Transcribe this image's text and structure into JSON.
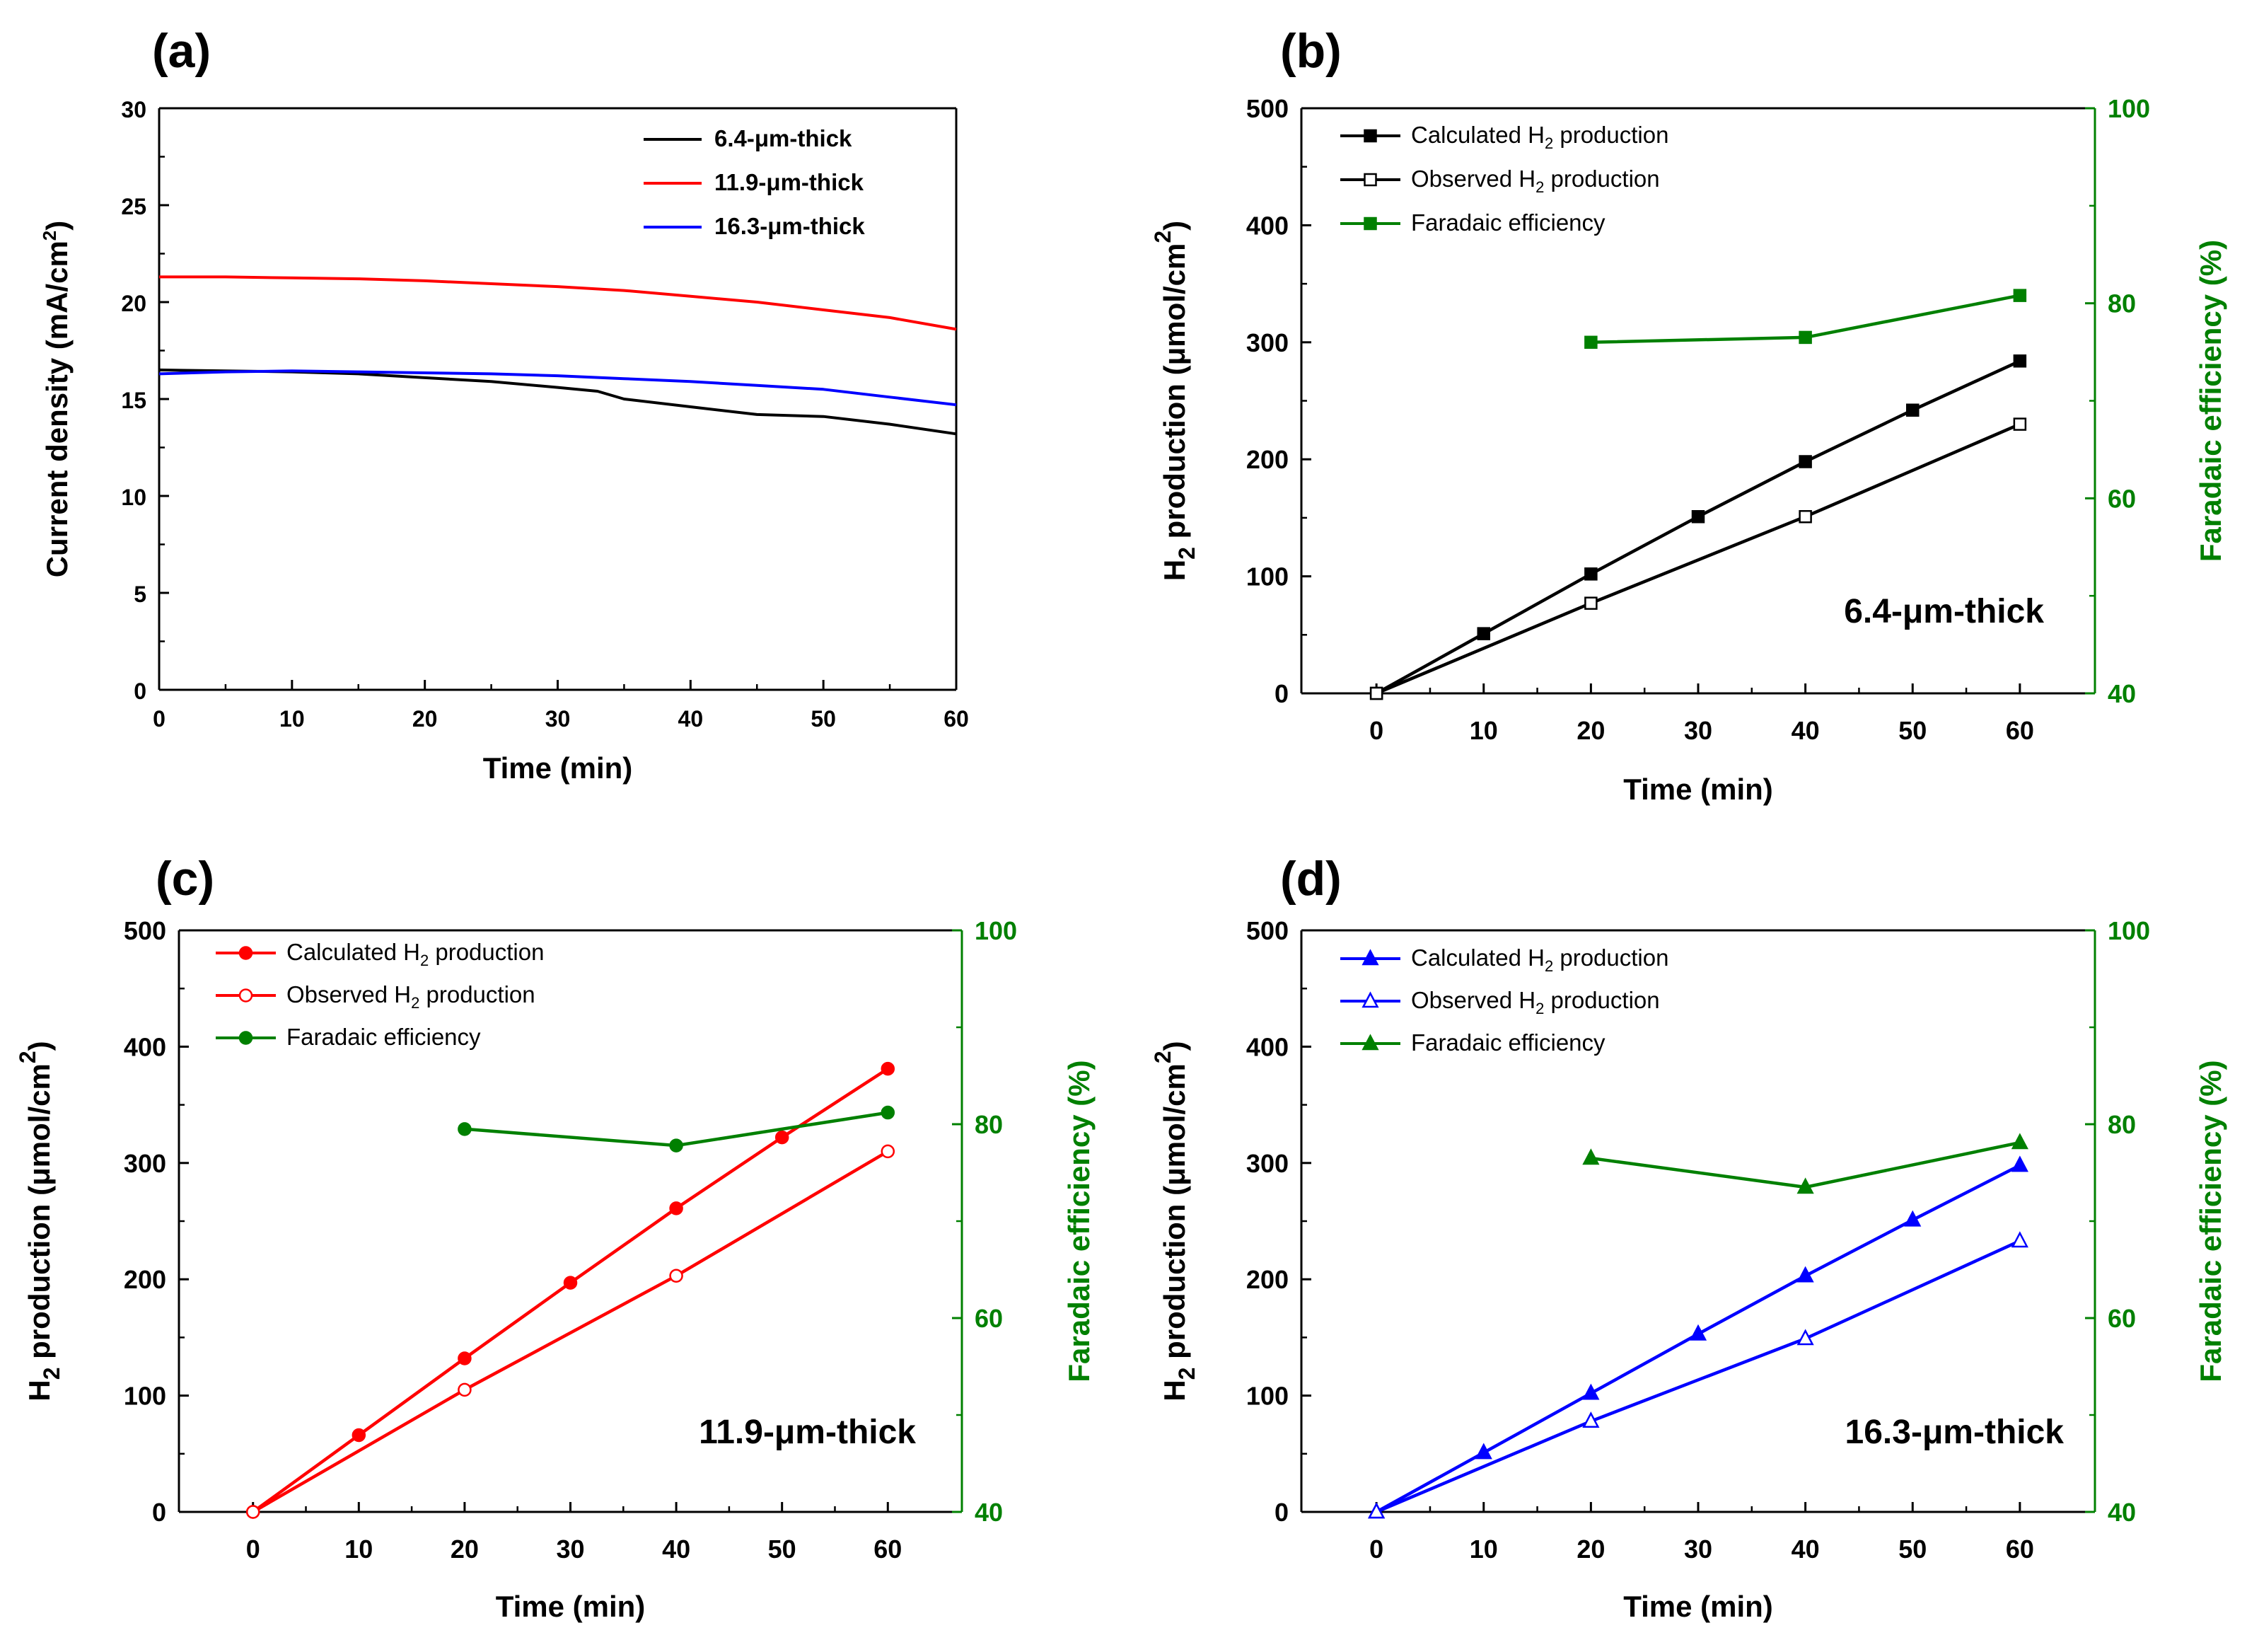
{
  "colors": {
    "black": "#000000",
    "red": "#ff0000",
    "blue": "#0000ff",
    "green": "#008000",
    "axis": "#000000"
  },
  "chart_data": [
    {
      "panel": "(a)",
      "type": "line",
      "xlabel": "Time (min)",
      "ylabel": "Current density (mA/cm2)",
      "ylabel_parts": [
        "Current density (mA/cm",
        "2",
        ")"
      ],
      "xlim": [
        0,
        60
      ],
      "ylim": [
        0,
        30
      ],
      "xticks": [
        0,
        10,
        20,
        30,
        40,
        50,
        60
      ],
      "yticks": [
        0,
        5,
        10,
        15,
        20,
        25,
        30
      ],
      "legend_position": "top-right",
      "series": [
        {
          "name": "6.4-μm-thick",
          "color": "#000000",
          "x": [
            0,
            5,
            10,
            15,
            20,
            25,
            30,
            33,
            35,
            40,
            45,
            50,
            55,
            60
          ],
          "y": [
            16.5,
            16.45,
            16.4,
            16.3,
            16.1,
            15.9,
            15.6,
            15.4,
            15.0,
            14.6,
            14.2,
            14.1,
            13.7,
            13.2
          ]
        },
        {
          "name": "11.9-μm-thick",
          "color": "#ff0000",
          "x": [
            0,
            5,
            10,
            15,
            20,
            25,
            30,
            35,
            40,
            45,
            50,
            55,
            60
          ],
          "y": [
            21.3,
            21.3,
            21.25,
            21.2,
            21.1,
            20.95,
            20.8,
            20.6,
            20.3,
            20.0,
            19.6,
            19.2,
            18.6
          ]
        },
        {
          "name": "16.3-μm-thick",
          "color": "#0000ff",
          "x": [
            0,
            5,
            10,
            15,
            20,
            25,
            30,
            35,
            40,
            45,
            50,
            55,
            60
          ],
          "y": [
            16.3,
            16.4,
            16.45,
            16.4,
            16.35,
            16.3,
            16.2,
            16.05,
            15.9,
            15.7,
            15.5,
            15.1,
            14.7
          ]
        }
      ]
    },
    {
      "panel": "(b)",
      "type": "line",
      "xlabel": "Time (min)",
      "ylabel_parts": [
        "H",
        "2",
        " production (μmol/cm",
        "2",
        ")"
      ],
      "y2label": "Faradaic efficiency (%)",
      "xlim": [
        -7,
        67
      ],
      "ylim": [
        0,
        500
      ],
      "y2lim": [
        40,
        100
      ],
      "xticks": [
        0,
        10,
        20,
        30,
        40,
        50,
        60
      ],
      "yticks": [
        0,
        100,
        200,
        300,
        400,
        500
      ],
      "y2ticks": [
        40,
        60,
        80,
        100
      ],
      "annotation": "6.4-μm-thick",
      "marker": "square",
      "legend_position": "top-left",
      "legend": [
        {
          "parts": [
            "Calculated H",
            "2",
            " production"
          ]
        },
        {
          "parts": [
            "Observed H",
            "2",
            " production"
          ]
        },
        {
          "parts": [
            "Faradaic efficiency"
          ]
        }
      ],
      "series": [
        {
          "name": "Calculated H2 production",
          "axis": "left",
          "color": "#000000",
          "filled": true,
          "x": [
            0,
            10,
            20,
            30,
            40,
            50,
            60
          ],
          "y": [
            0,
            51,
            102,
            151,
            198,
            242,
            284
          ]
        },
        {
          "name": "Observed H2 production",
          "axis": "left",
          "color": "#000000",
          "filled": false,
          "x": [
            0,
            20,
            40,
            60
          ],
          "y": [
            0,
            77,
            151,
            230
          ]
        },
        {
          "name": "Faradaic efficiency",
          "axis": "right",
          "color": "#008000",
          "filled": true,
          "x": [
            20,
            40,
            60
          ],
          "y": [
            76,
            76.5,
            80.8
          ]
        }
      ]
    },
    {
      "panel": "(c)",
      "type": "line",
      "xlabel": "Time (min)",
      "ylabel_parts": [
        "H",
        "2",
        " production (μmol/cm",
        "2",
        ")"
      ],
      "y2label": "Faradaic efficiency (%)",
      "xlim": [
        -7,
        67
      ],
      "ylim": [
        0,
        500
      ],
      "y2lim": [
        40,
        100
      ],
      "xticks": [
        0,
        10,
        20,
        30,
        40,
        50,
        60
      ],
      "yticks": [
        0,
        100,
        200,
        300,
        400,
        500
      ],
      "y2ticks": [
        40,
        60,
        80,
        100
      ],
      "annotation": "11.9-μm-thick",
      "marker": "circle",
      "legend_position": "top-left",
      "legend": [
        {
          "parts": [
            "Calculated H",
            "2",
            " production"
          ]
        },
        {
          "parts": [
            "Observed H",
            "2",
            " production"
          ]
        },
        {
          "parts": [
            "Faradaic efficiency"
          ]
        }
      ],
      "series": [
        {
          "name": "Calculated H2 production",
          "axis": "left",
          "color": "#ff0000",
          "filled": true,
          "x": [
            0,
            10,
            20,
            30,
            40,
            50,
            60
          ],
          "y": [
            0,
            66,
            132,
            197,
            261,
            322,
            381
          ]
        },
        {
          "name": "Observed H2 production",
          "axis": "left",
          "color": "#ff0000",
          "filled": false,
          "x": [
            0,
            20,
            40,
            60
          ],
          "y": [
            0,
            105,
            203,
            310
          ]
        },
        {
          "name": "Faradaic efficiency",
          "axis": "right",
          "color": "#008000",
          "filled": true,
          "x": [
            20,
            40,
            60
          ],
          "y": [
            79.5,
            77.8,
            81.2
          ]
        }
      ]
    },
    {
      "panel": "(d)",
      "type": "line",
      "xlabel": "Time (min)",
      "ylabel_parts": [
        "H",
        "2",
        " production (μmol/cm",
        "2",
        ")"
      ],
      "y2label": "Faradaic efficiency (%)",
      "xlim": [
        -7,
        67
      ],
      "ylim": [
        0,
        500
      ],
      "y2lim": [
        40,
        100
      ],
      "xticks": [
        0,
        10,
        20,
        30,
        40,
        50,
        60
      ],
      "yticks": [
        0,
        100,
        200,
        300,
        400,
        500
      ],
      "y2ticks": [
        40,
        60,
        80,
        100
      ],
      "annotation": "16.3-μm-thick",
      "marker": "triangle",
      "legend_position": "top-left",
      "legend": [
        {
          "parts": [
            "Calculated H",
            "2",
            " production"
          ]
        },
        {
          "parts": [
            "Observed H",
            "2",
            " production"
          ]
        },
        {
          "parts": [
            "Faradaic efficiency"
          ]
        }
      ],
      "series": [
        {
          "name": "Calculated H2 production",
          "axis": "left",
          "color": "#0000ff",
          "filled": true,
          "x": [
            0,
            10,
            20,
            30,
            40,
            50,
            60
          ],
          "y": [
            0,
            51,
            102,
            153,
            203,
            251,
            298
          ]
        },
        {
          "name": "Observed H2 production",
          "axis": "left",
          "color": "#0000ff",
          "filled": false,
          "x": [
            0,
            20,
            40,
            60
          ],
          "y": [
            0,
            78,
            149,
            233
          ]
        },
        {
          "name": "Faradaic efficiency",
          "axis": "right",
          "color": "#008000",
          "filled": true,
          "x": [
            20,
            40,
            60
          ],
          "y": [
            76.5,
            73.5,
            78.1
          ]
        }
      ]
    }
  ]
}
